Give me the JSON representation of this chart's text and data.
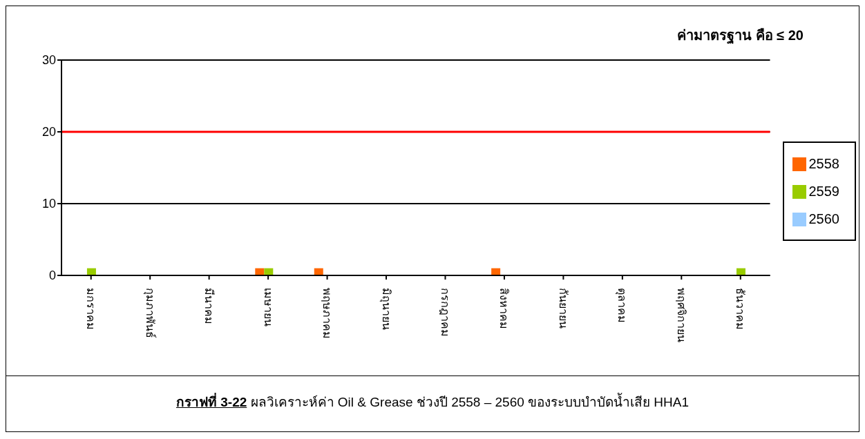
{
  "chart_data": {
    "type": "bar",
    "title": "ค่ามาตรฐาน คือ ≤ 20",
    "categories": [
      "มกราคม",
      "กุมภาพันธ์",
      "มีนาคม",
      "เมษายน",
      "พฤษภาคม",
      "มิถุนายน",
      "กรกฎาคม",
      "สิงหาคม",
      "กันยายน",
      "ตุลาคม",
      "พฤศจิกายน",
      "ธันวาคม"
    ],
    "series": [
      {
        "name": "2558",
        "color": "#ff6600",
        "values": [
          0,
          0,
          0,
          1,
          1,
          0,
          0,
          1,
          0,
          0,
          0,
          0
        ]
      },
      {
        "name": "2559",
        "color": "#99cc00",
        "values": [
          1,
          0,
          0,
          1,
          0,
          0,
          0,
          0,
          0,
          0,
          0,
          1
        ]
      },
      {
        "name": "2560",
        "color": "#99ccff",
        "values": [
          0,
          0,
          0,
          0,
          0,
          0,
          0,
          0,
          0,
          0,
          0,
          0
        ]
      }
    ],
    "ylim": [
      0,
      30
    ],
    "yticks": [
      0,
      10,
      20,
      30
    ],
    "grid": "y",
    "legend": "right",
    "ref_lines": [
      {
        "axis": "y",
        "value": 20,
        "color": "#ff0000"
      }
    ],
    "annotations": [
      "กราฟที่ 3-22 ผลวิเคราะห์ค่า Oil & Grease ช่วงปี 2558 – 2560 ของระบบบำบัดน้ำเสีย HHA1"
    ]
  }
}
